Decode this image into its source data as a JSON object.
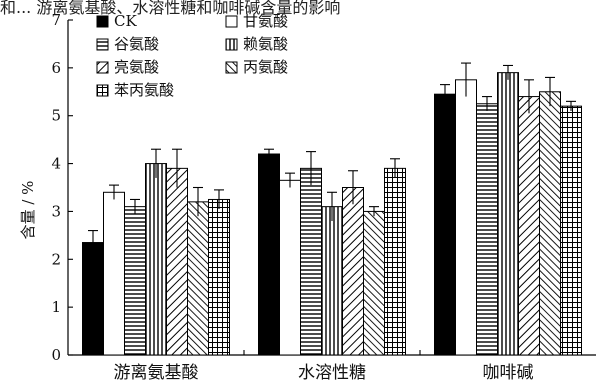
{
  "header": {
    "text": "和... 游离氨基酸、水溶性糖和咖啡碱含量的影响"
  },
  "chart_data": {
    "type": "bar",
    "ylabel": "含量 / %",
    "ylim": [
      0,
      7
    ],
    "yticks": [
      0,
      1,
      2,
      3,
      4,
      5,
      6,
      7
    ],
    "categories": [
      "游离氨基酸",
      "水溶性糖",
      "咖啡碱"
    ],
    "legend_position": "top-left",
    "series": [
      {
        "name": "CK",
        "pattern": "solid",
        "values": [
          2.35,
          4.2,
          5.45
        ],
        "errors": [
          0.25,
          0.1,
          0.2
        ]
      },
      {
        "name": "甘氨酸",
        "pattern": "white",
        "values": [
          3.4,
          3.65,
          5.75
        ],
        "errors": [
          0.15,
          0.15,
          0.35
        ]
      },
      {
        "name": "谷氨酸",
        "pattern": "hlines",
        "values": [
          3.1,
          3.9,
          5.25
        ],
        "errors": [
          0.15,
          0.35,
          0.15
        ]
      },
      {
        "name": "赖氨酸",
        "pattern": "vlines",
        "values": [
          4.0,
          3.1,
          5.9
        ],
        "errors": [
          0.3,
          0.3,
          0.15
        ]
      },
      {
        "name": "亮氨酸",
        "pattern": "diag",
        "values": [
          3.9,
          3.5,
          5.4
        ],
        "errors": [
          0.4,
          0.35,
          0.35
        ]
      },
      {
        "name": "丙氨酸",
        "pattern": "diagrev",
        "values": [
          3.2,
          3.0,
          5.5
        ],
        "errors": [
          0.3,
          0.1,
          0.3
        ]
      },
      {
        "name": "苯丙氨酸",
        "pattern": "grid",
        "values": [
          3.25,
          3.9,
          5.2
        ],
        "errors": [
          0.2,
          0.2,
          0.1
        ]
      }
    ]
  }
}
